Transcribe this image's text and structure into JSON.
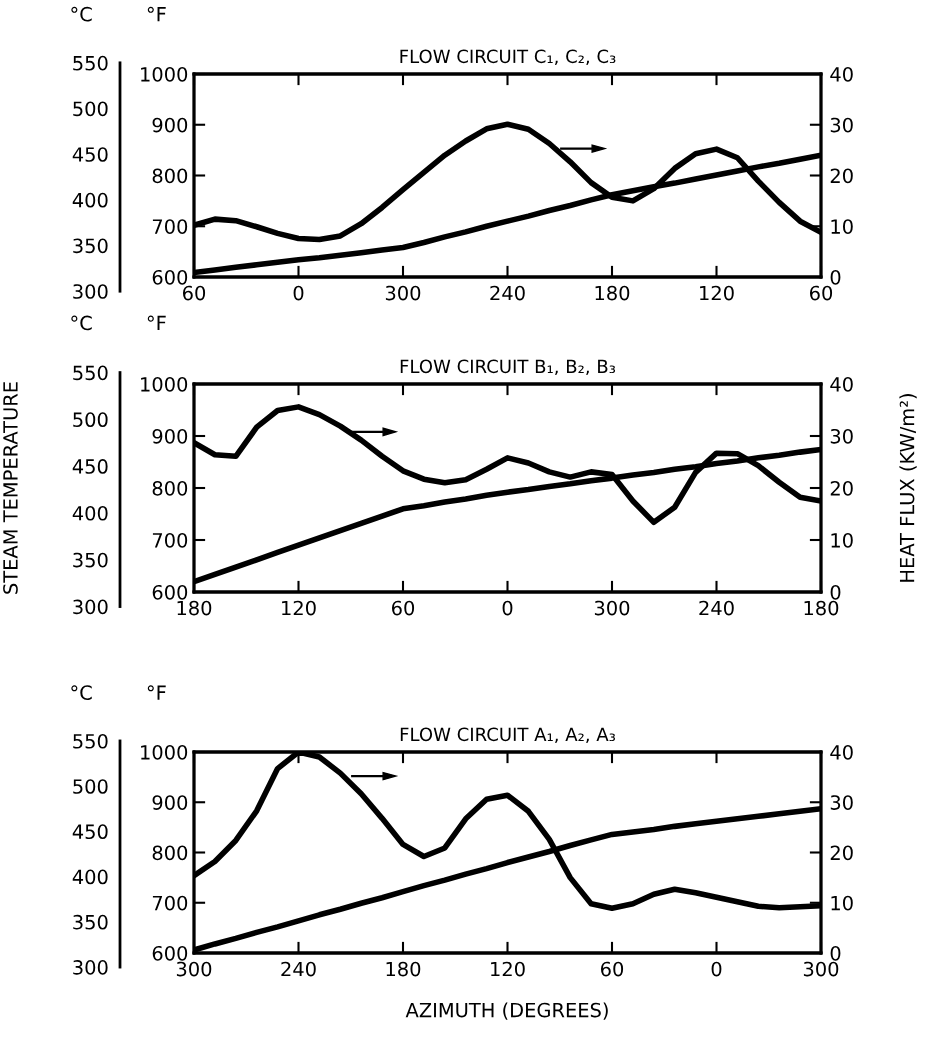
{
  "chart_data": [
    {
      "type": "line",
      "title": "FLOW CIRCUIT C₁, C₂, C₃",
      "ylabel": "°F",
      "y3label": "°C",
      "categories": [
        "60",
        null,
        null,
        null,
        null,
        "0",
        null,
        null,
        null,
        null,
        "300",
        null,
        null,
        null,
        null,
        "240",
        null,
        null,
        null,
        null,
        "180",
        null,
        null,
        null,
        null,
        "120",
        null,
        null,
        null,
        null,
        "60"
      ],
      "ylim": [
        600,
        1000
      ],
      "yticks": [
        600,
        700,
        800,
        900,
        1000
      ],
      "y2lim": [
        0,
        40
      ],
      "y2ticks": [
        0,
        10,
        20,
        30,
        40
      ],
      "y3lim": [
        300,
        550
      ],
      "y3ticks": [
        300,
        350,
        400,
        450,
        500,
        550
      ],
      "series": [
        {
          "color": "#000000",
          "axis": "y",
          "values": [
            609,
            614,
            619,
            624,
            629,
            634,
            638,
            643,
            648,
            653,
            658,
            668,
            679,
            689,
            700,
            710,
            720,
            731,
            741,
            752,
            762,
            770,
            778,
            785,
            793,
            801,
            809,
            817,
            824,
            832,
            840
          ]
        },
        {
          "color": "#000000",
          "axis": "y2",
          "values": [
            10.2,
            11.4,
            11.1,
            9.9,
            8.6,
            7.6,
            7.4,
            8.1,
            10.5,
            13.7,
            17.2,
            20.6,
            24.0,
            26.8,
            29.2,
            30.1,
            29.1,
            26.3,
            22.7,
            18.6,
            15.7,
            15.0,
            17.4,
            21.4,
            24.3,
            25.2,
            23.5,
            18.9,
            14.7,
            11.0,
            8.8
          ]
        }
      ]
    },
    {
      "type": "line",
      "title": "FLOW CIRCUIT B₁, B₂, B₃",
      "ylabel": "°F",
      "y3label": "°C",
      "y2label": "HEAT FLUX (KW/m²)",
      "annotations": [
        "STEAM TEMPERATURE"
      ],
      "categories": [
        "180",
        null,
        null,
        null,
        null,
        "120",
        null,
        null,
        null,
        null,
        "60",
        null,
        null,
        null,
        null,
        "0",
        null,
        null,
        null,
        null,
        "300",
        null,
        null,
        null,
        null,
        "240",
        null,
        null,
        null,
        null,
        "180"
      ],
      "ylim": [
        600,
        1000
      ],
      "yticks": [
        600,
        700,
        800,
        900,
        1000
      ],
      "y2lim": [
        0,
        40
      ],
      "y2ticks": [
        0,
        10,
        20,
        30,
        40
      ],
      "y3lim": [
        300,
        550
      ],
      "y3ticks": [
        300,
        350,
        400,
        450,
        500,
        550
      ],
      "series": [
        {
          "color": "#000000",
          "axis": "y",
          "values": [
            620,
            634,
            648,
            662,
            676,
            690,
            704,
            718,
            732,
            746,
            760,
            766,
            773,
            779,
            786,
            792,
            797,
            803,
            808,
            814,
            819,
            825,
            830,
            836,
            841,
            847,
            852,
            858,
            863,
            869,
            874
          ]
        },
        {
          "color": "#000000",
          "axis": "y2",
          "values": [
            28.7,
            26.4,
            26.1,
            31.7,
            34.9,
            35.6,
            34.1,
            31.9,
            29.2,
            26.1,
            23.3,
            21.7,
            21.0,
            21.6,
            23.6,
            25.8,
            24.8,
            23.1,
            22.1,
            23.1,
            22.6,
            17.5,
            13.4,
            16.3,
            23.0,
            26.7,
            26.6,
            24.3,
            21.1,
            18.2,
            17.5
          ]
        }
      ]
    },
    {
      "type": "line",
      "title": "FLOW CIRCUIT A₁, A₂, A₃",
      "ylabel": "°F",
      "y3label": "°C",
      "xlabel": "AZIMUTH (DEGREES)",
      "categories": [
        "300",
        null,
        null,
        null,
        null,
        "240",
        null,
        null,
        null,
        null,
        "180",
        null,
        null,
        null,
        null,
        "120",
        null,
        null,
        null,
        null,
        "60",
        null,
        null,
        null,
        null,
        "0",
        null,
        null,
        null,
        null,
        "300"
      ],
      "ylim": [
        600,
        1000
      ],
      "yticks": [
        600,
        700,
        800,
        900,
        1000
      ],
      "y2lim": [
        0,
        40
      ],
      "y2ticks": [
        0,
        10,
        20,
        30,
        40
      ],
      "y3lim": [
        300,
        550
      ],
      "y3ticks": [
        300,
        350,
        400,
        450,
        500,
        550
      ],
      "series": [
        {
          "color": "#000000",
          "axis": "y",
          "values": [
            606,
            618,
            629,
            641,
            652,
            664,
            676,
            687,
            699,
            710,
            722,
            734,
            745,
            757,
            768,
            780,
            791,
            802,
            814,
            825,
            836,
            841,
            846,
            852,
            857,
            862,
            867,
            872,
            877,
            882,
            887
          ]
        },
        {
          "color": "#000000",
          "axis": "y2",
          "values": [
            15.4,
            18.2,
            22.4,
            28.3,
            36.7,
            40,
            39.0,
            35.8,
            31.7,
            26.8,
            21.6,
            19.2,
            20.9,
            26.7,
            30.6,
            31.4,
            28.2,
            22.6,
            15.0,
            9.8,
            8.9,
            9.8,
            11.7,
            12.7,
            12.0,
            11.1,
            10.2,
            9.3,
            9.0,
            9.2,
            9.4
          ]
        }
      ]
    }
  ]
}
